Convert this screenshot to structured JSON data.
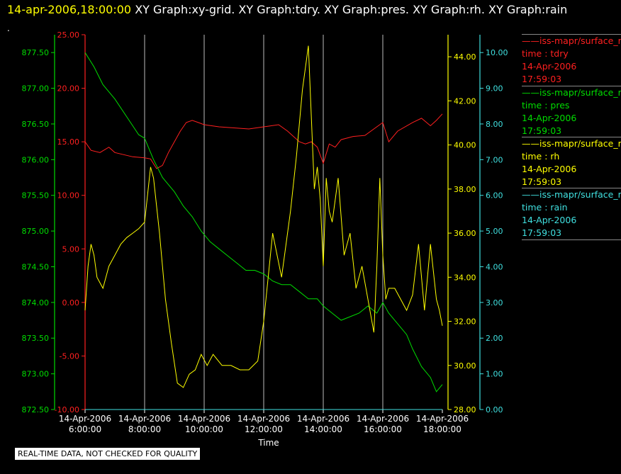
{
  "header": {
    "timestamp": "14-apr-2006,18:00:00",
    "graphs": "XY Graph:xy-grid.  XY Graph:tdry.  XY Graph:pres.  XY Graph:rh.  XY Graph:rain",
    "dot": "."
  },
  "footer_note": "REAL-TIME DATA, NOT CHECKED FOR QUALITY",
  "legend": [
    {
      "name": "iss-mapr/surface_met",
      "label": "time : tdry",
      "date": "14-Apr-2006",
      "time": "17:59:03",
      "color": "#ff2020"
    },
    {
      "name": "iss-mapr/surface_met",
      "label": "time : pres",
      "date": "14-Apr-2006",
      "time": "17:59:03",
      "color": "#00dd00"
    },
    {
      "name": "iss-mapr/surface_met",
      "label": "time : rh",
      "date": "14-Apr-2006",
      "time": "17:59:03",
      "color": "#ffff00"
    },
    {
      "name": "iss-mapr/surface_met",
      "label": "time : rain",
      "date": "14-Apr-2006",
      "time": "17:59:03",
      "color": "#40e0e0"
    }
  ],
  "chart_data": {
    "type": "line",
    "xlabel": "Time",
    "x_ticks": [
      "14-Apr-2006\n6:00:00",
      "14-Apr-2006\n8:00:00",
      "14-Apr-2006\n10:00:00",
      "14-Apr-2006\n12:00:00",
      "14-Apr-2006\n14:00:00",
      "14-Apr-2006\n16:00:00",
      "14-Apr-2006\n18:00:00"
    ],
    "xlim": [
      6,
      18
    ],
    "grid": "vertical",
    "axes": [
      {
        "id": "tdry",
        "side": "left-inner",
        "color": "#ff2020",
        "lim": [
          -10,
          25
        ],
        "ticks": [
          "-10.00",
          "-5.00",
          "0.00",
          "5.00",
          "10.00",
          "15.00",
          "20.00",
          "25.00"
        ]
      },
      {
        "id": "pres",
        "side": "left-outer",
        "color": "#00dd00",
        "lim": [
          872.5,
          877.75
        ],
        "ticks": [
          "872.50",
          "873.00",
          "873.50",
          "874.00",
          "874.50",
          "875.00",
          "875.50",
          "876.00",
          "876.50",
          "877.00",
          "877.50"
        ]
      },
      {
        "id": "rh",
        "side": "right-inner",
        "color": "#ffff00",
        "lim": [
          28,
          45
        ],
        "ticks": [
          "28.00",
          "30.00",
          "32.00",
          "34.00",
          "36.00",
          "38.00",
          "40.00",
          "42.00",
          "44.00"
        ]
      },
      {
        "id": "rain",
        "side": "right-outer",
        "color": "#40e0e0",
        "lim": [
          0,
          10.5
        ],
        "ticks": [
          "0.00",
          "1.00",
          "2.00",
          "3.00",
          "4.00",
          "5.00",
          "6.00",
          "7.00",
          "8.00",
          "9.00",
          "10.00"
        ]
      }
    ],
    "series": [
      {
        "id": "tdry",
        "axis": "tdry",
        "color": "#ff2020",
        "x": [
          6.0,
          6.2,
          6.5,
          6.8,
          7.0,
          7.3,
          7.6,
          8.0,
          8.2,
          8.4,
          8.6,
          8.8,
          9.0,
          9.2,
          9.4,
          9.6,
          9.8,
          10.0,
          10.5,
          11.0,
          11.5,
          12.0,
          12.5,
          12.8,
          13.0,
          13.2,
          13.4,
          13.6,
          13.8,
          14.0,
          14.2,
          14.4,
          14.6,
          15.0,
          15.4,
          15.7,
          16.0,
          16.2,
          16.5,
          17.0,
          17.3,
          17.6,
          17.8,
          18.0
        ],
        "y": [
          15.0,
          14.2,
          14.0,
          14.5,
          14.0,
          13.8,
          13.6,
          13.5,
          13.4,
          12.5,
          12.8,
          14.0,
          15.0,
          16.0,
          16.8,
          17.0,
          16.8,
          16.6,
          16.4,
          16.3,
          16.2,
          16.4,
          16.6,
          16.0,
          15.5,
          15.0,
          14.8,
          15.0,
          14.5,
          13.0,
          14.8,
          14.5,
          15.2,
          15.5,
          15.6,
          16.2,
          16.8,
          15.0,
          16.0,
          16.8,
          17.2,
          16.5,
          17.0,
          17.6
        ]
      },
      {
        "id": "pres",
        "axis": "pres",
        "color": "#00dd00",
        "x": [
          6.0,
          6.3,
          6.6,
          7.0,
          7.4,
          7.8,
          8.0,
          8.3,
          8.6,
          9.0,
          9.3,
          9.6,
          9.9,
          10.2,
          10.5,
          10.8,
          11.1,
          11.4,
          11.7,
          12.0,
          12.3,
          12.6,
          12.9,
          13.2,
          13.5,
          13.8,
          14.0,
          14.3,
          14.6,
          14.9,
          15.2,
          15.5,
          15.8,
          16.0,
          16.2,
          16.5,
          16.8,
          17.0,
          17.3,
          17.6,
          17.8,
          18.0
        ],
        "y": [
          877.5,
          877.3,
          877.05,
          876.85,
          876.6,
          876.35,
          876.3,
          876.0,
          875.75,
          875.55,
          875.35,
          875.2,
          875.0,
          874.85,
          874.75,
          874.65,
          874.55,
          874.45,
          874.45,
          874.4,
          874.3,
          874.25,
          874.25,
          874.15,
          874.05,
          874.05,
          873.95,
          873.85,
          873.75,
          873.8,
          873.85,
          873.95,
          873.85,
          874.0,
          873.85,
          873.7,
          873.55,
          873.35,
          873.1,
          872.95,
          872.75,
          872.85
        ]
      },
      {
        "id": "rh",
        "axis": "rh",
        "color": "#ffff00",
        "x": [
          6.0,
          6.1,
          6.2,
          6.3,
          6.4,
          6.6,
          6.8,
          7.0,
          7.2,
          7.4,
          7.6,
          7.8,
          8.0,
          8.2,
          8.3,
          8.5,
          8.7,
          8.9,
          9.1,
          9.3,
          9.5,
          9.7,
          9.9,
          10.1,
          10.3,
          10.6,
          10.9,
          11.2,
          11.5,
          11.8,
          12.0,
          12.3,
          12.6,
          12.9,
          13.1,
          13.3,
          13.5,
          13.7,
          13.8,
          13.9,
          14.0,
          14.1,
          14.2,
          14.3,
          14.5,
          14.7,
          14.9,
          15.1,
          15.3,
          15.5,
          15.7,
          15.8,
          15.9,
          16.0,
          16.1,
          16.2,
          16.4,
          16.6,
          16.8,
          17.0,
          17.2,
          17.4,
          17.6,
          17.8,
          17.9,
          18.0
        ],
        "y": [
          32.5,
          34.5,
          35.5,
          35.0,
          34.0,
          33.5,
          34.5,
          35.0,
          35.5,
          35.8,
          36.0,
          36.2,
          36.5,
          39.0,
          38.5,
          36.0,
          33.0,
          31.0,
          29.2,
          29.0,
          29.6,
          29.8,
          30.5,
          30.0,
          30.5,
          30.0,
          30.0,
          29.8,
          29.8,
          30.2,
          32.0,
          36.0,
          34.0,
          37.0,
          39.5,
          42.5,
          44.5,
          38.0,
          39.0,
          37.5,
          34.5,
          38.5,
          37.0,
          36.5,
          38.5,
          35.0,
          36.0,
          33.5,
          34.5,
          33.0,
          31.5,
          34.5,
          38.5,
          35.0,
          33.0,
          33.5,
          33.5,
          33.0,
          32.5,
          33.2,
          35.5,
          32.5,
          35.5,
          33.0,
          32.5,
          31.8
        ]
      },
      {
        "id": "rain",
        "axis": "rain",
        "color": "#40e0e0",
        "x": [
          6.0,
          18.0
        ],
        "y": [
          0.0,
          0.0
        ]
      }
    ]
  }
}
